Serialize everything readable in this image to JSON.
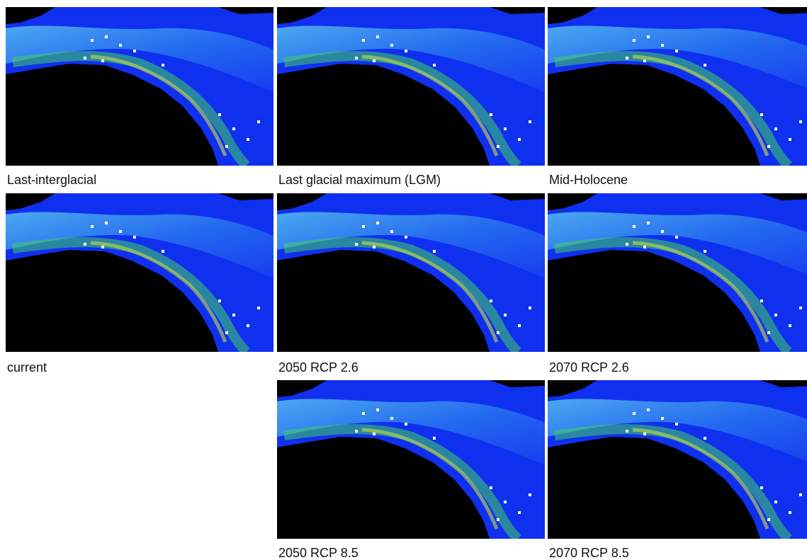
{
  "panels": [
    {
      "label": "Last-interglacial"
    },
    {
      "label": "Last glacial maximum (LGM)"
    },
    {
      "label": "Mid-Holocene"
    },
    {
      "label": "current"
    },
    {
      "label": "2050 RCP 2.6"
    },
    {
      "label": "2070 RCP 2.6"
    },
    {
      "label": "2050 RCP 8.5"
    },
    {
      "label": "2070 RCP 8.5"
    }
  ]
}
